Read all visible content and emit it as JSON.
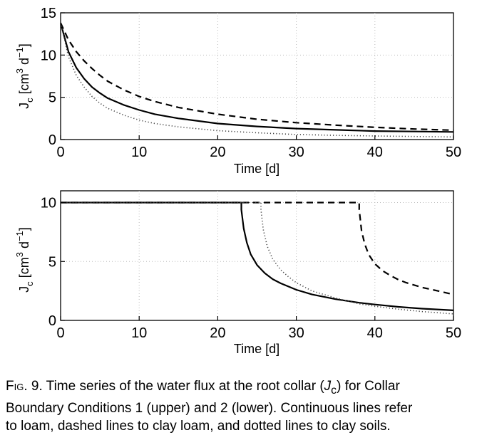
{
  "chart_data": [
    {
      "type": "line",
      "xlabel": "Time [d]",
      "ylabel": "J_c [cm^3 d^-1]",
      "ylabel_parts": {
        "main": "J",
        "sub": "c",
        "unit_open": "[cm",
        "sup1": "3",
        "unit_mid": "d",
        "sup2": "−1",
        "unit_close": "]"
      },
      "xlim": [
        0,
        50
      ],
      "ylim": [
        0,
        15
      ],
      "xticks": [
        "0",
        "10",
        "20",
        "30",
        "40",
        "50"
      ],
      "yticks": [
        "0",
        "5",
        "10",
        "15"
      ],
      "grid": true,
      "series": [
        {
          "style": "solid",
          "x": [
            0,
            1,
            2,
            3,
            4,
            5,
            6,
            8,
            10,
            12,
            15,
            20,
            25,
            30,
            35,
            40,
            45,
            50
          ],
          "y": [
            13.8,
            10.4,
            8.5,
            7.2,
            6.2,
            5.5,
            4.9,
            4.1,
            3.5,
            3.0,
            2.5,
            1.9,
            1.55,
            1.3,
            1.15,
            1.0,
            0.95,
            0.9
          ]
        },
        {
          "style": "dashed",
          "x": [
            0,
            1,
            2,
            3,
            4,
            5,
            6,
            8,
            10,
            12,
            15,
            20,
            25,
            30,
            35,
            40,
            45,
            50
          ],
          "y": [
            13.8,
            11.8,
            10.4,
            9.3,
            8.4,
            7.6,
            6.9,
            5.9,
            5.1,
            4.5,
            3.8,
            3.0,
            2.4,
            2.0,
            1.7,
            1.45,
            1.25,
            1.1
          ]
        },
        {
          "style": "dotted",
          "x": [
            0,
            1,
            2,
            3,
            4,
            5,
            6,
            8,
            10,
            12,
            15,
            20,
            25,
            30,
            35,
            40,
            45,
            50
          ],
          "y": [
            13.8,
            9.8,
            7.6,
            6.2,
            5.1,
            4.3,
            3.7,
            2.9,
            2.3,
            1.9,
            1.5,
            1.05,
            0.8,
            0.6,
            0.5,
            0.42,
            0.36,
            0.3
          ]
        }
      ]
    },
    {
      "type": "line",
      "xlabel": "Time [d]",
      "ylabel": "J_c [cm^3 d^-1]",
      "ylabel_parts": {
        "main": "J",
        "sub": "c",
        "unit_open": "[cm",
        "sup1": "3",
        "unit_mid": "d",
        "sup2": "−1",
        "unit_close": "]"
      },
      "xlim": [
        0,
        50
      ],
      "ylim": [
        0,
        11
      ],
      "xticks": [
        "0",
        "10",
        "20",
        "30",
        "40",
        "50"
      ],
      "yticks": [
        "0",
        "5",
        "10"
      ],
      "grid": true,
      "series": [
        {
          "style": "solid",
          "x": [
            0,
            23.0,
            23.0,
            23.3,
            23.7,
            24.2,
            25,
            26,
            27,
            28,
            30,
            32,
            35,
            38,
            40,
            43,
            46,
            50
          ],
          "y": [
            10,
            10,
            9.4,
            7.8,
            6.6,
            5.6,
            4.7,
            4.0,
            3.5,
            3.15,
            2.6,
            2.2,
            1.8,
            1.5,
            1.35,
            1.15,
            1.0,
            0.85
          ]
        },
        {
          "style": "dashed",
          "x": [
            0,
            38.0,
            38.0,
            38.3,
            38.7,
            39.2,
            40,
            41,
            42,
            43,
            44,
            46,
            48,
            50
          ],
          "y": [
            10,
            10,
            9.4,
            7.6,
            6.5,
            5.6,
            4.8,
            4.2,
            3.8,
            3.45,
            3.2,
            2.8,
            2.5,
            2.2
          ]
        },
        {
          "style": "dotted",
          "x": [
            0,
            25.5,
            25.5,
            25.8,
            26.3,
            27,
            28,
            29,
            30,
            32,
            35,
            38,
            40,
            43,
            46,
            50
          ],
          "y": [
            10,
            10,
            9.4,
            7.7,
            6.3,
            5.2,
            4.3,
            3.7,
            3.2,
            2.5,
            1.9,
            1.4,
            1.2,
            0.95,
            0.75,
            0.55
          ]
        }
      ]
    }
  ],
  "caption": {
    "fig_label": "Fig. 9.",
    "line1_a": " Time series of the water flux at the root collar (",
    "line1_sym": "J",
    "line1_sub": "c",
    "line1_b": ") for Collar",
    "line2": "Boundary Conditions 1 (upper) and 2 (lower). Continuous lines refer",
    "line3": "to loam, dashed lines to clay loam, and dotted lines to clay soils."
  }
}
